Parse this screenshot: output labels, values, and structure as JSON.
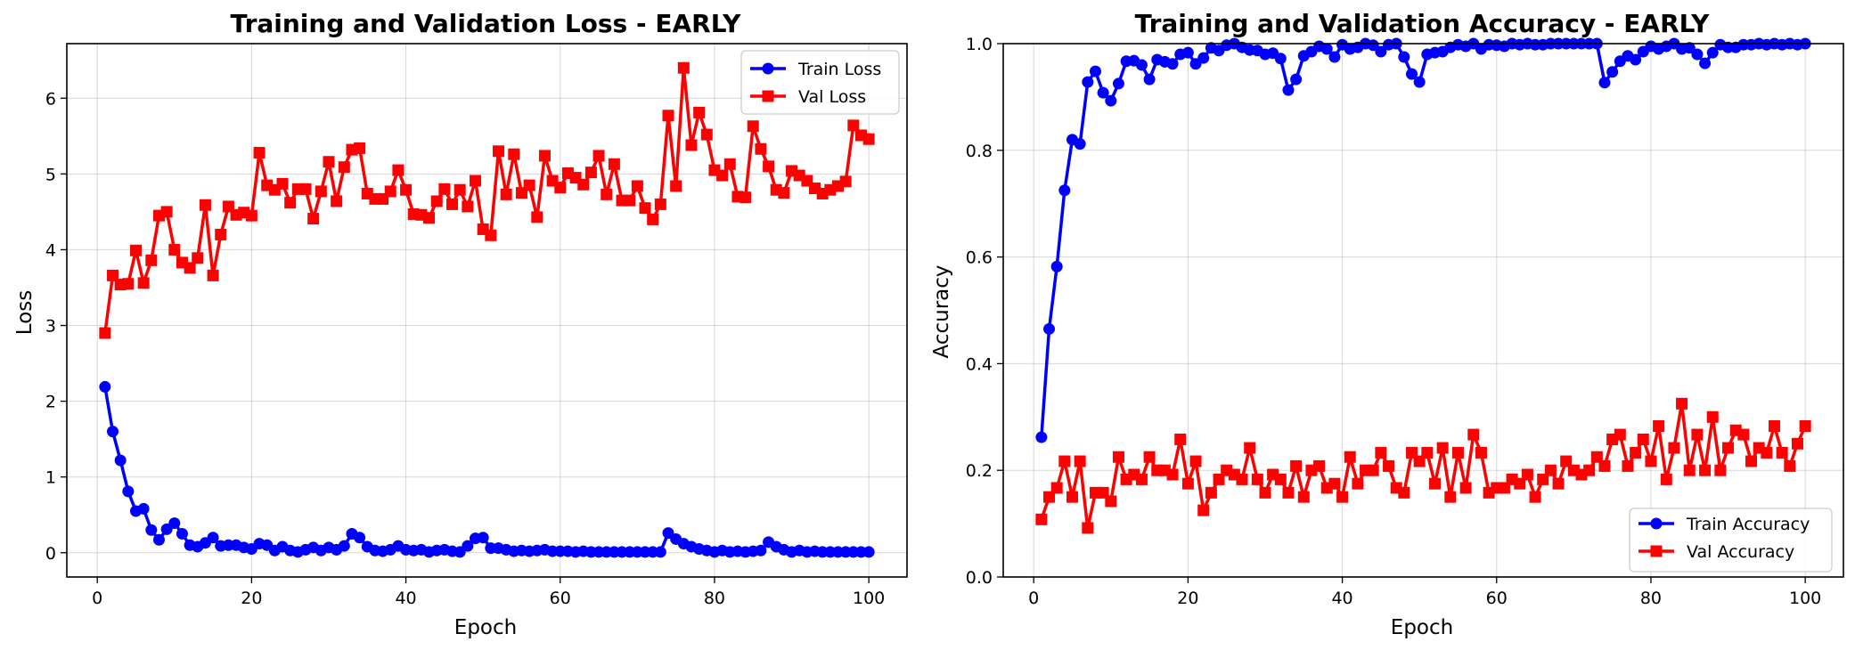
{
  "chart_data": [
    {
      "type": "line",
      "title": "Training and Validation Loss - EARLY",
      "xlabel": "Epoch",
      "ylabel": "Loss",
      "xlim": [
        -3.95,
        104.95
      ],
      "ylim": [
        -0.32,
        6.72
      ],
      "xticks": [
        0,
        20,
        40,
        60,
        80,
        100
      ],
      "yticks": [
        0,
        1,
        2,
        3,
        4,
        5,
        6
      ],
      "grid": true,
      "legend": "top-right",
      "x": [
        1,
        2,
        3,
        4,
        5,
        6,
        7,
        8,
        9,
        10,
        11,
        12,
        13,
        14,
        15,
        16,
        17,
        18,
        19,
        20,
        21,
        22,
        23,
        24,
        25,
        26,
        27,
        28,
        29,
        30,
        31,
        32,
        33,
        34,
        35,
        36,
        37,
        38,
        39,
        40,
        41,
        42,
        43,
        44,
        45,
        46,
        47,
        48,
        49,
        50,
        51,
        52,
        53,
        54,
        55,
        56,
        57,
        58,
        59,
        60,
        61,
        62,
        63,
        64,
        65,
        66,
        67,
        68,
        69,
        70,
        71,
        72,
        73,
        74,
        75,
        76,
        77,
        78,
        79,
        80,
        81,
        82,
        83,
        84,
        85,
        86,
        87,
        88,
        89,
        90,
        91,
        92,
        93,
        94,
        95,
        96,
        97,
        98,
        99,
        100
      ],
      "series": [
        {
          "name": "Train Loss",
          "color": "#0000ff",
          "marker": "circle",
          "values": [
            2.19,
            1.6,
            1.22,
            0.81,
            0.55,
            0.58,
            0.3,
            0.17,
            0.31,
            0.39,
            0.25,
            0.1,
            0.08,
            0.13,
            0.2,
            0.09,
            0.1,
            0.1,
            0.07,
            0.05,
            0.12,
            0.1,
            0.03,
            0.08,
            0.03,
            0.01,
            0.04,
            0.07,
            0.03,
            0.07,
            0.04,
            0.09,
            0.25,
            0.2,
            0.08,
            0.03,
            0.02,
            0.04,
            0.09,
            0.04,
            0.03,
            0.04,
            0.01,
            0.03,
            0.04,
            0.02,
            0.01,
            0.09,
            0.19,
            0.2,
            0.06,
            0.06,
            0.04,
            0.02,
            0.03,
            0.02,
            0.03,
            0.04,
            0.02,
            0.02,
            0.02,
            0.01,
            0.02,
            0.01,
            0.01,
            0.01,
            0.01,
            0.01,
            0.01,
            0.01,
            0.01,
            0.01,
            0.01,
            0.26,
            0.18,
            0.12,
            0.08,
            0.05,
            0.03,
            0.01,
            0.03,
            0.01,
            0.02,
            0.01,
            0.02,
            0.03,
            0.14,
            0.08,
            0.04,
            0.01,
            0.03,
            0.01,
            0.02,
            0.01,
            0.01,
            0.01,
            0.01,
            0.01,
            0.01,
            0.01
          ]
        },
        {
          "name": "Val Loss",
          "color": "#ff0000",
          "marker": "square",
          "values": [
            2.9,
            3.66,
            3.54,
            3.55,
            3.99,
            3.56,
            3.86,
            4.45,
            4.5,
            4.0,
            3.83,
            3.76,
            3.89,
            4.59,
            3.66,
            4.2,
            4.57,
            4.46,
            4.49,
            4.45,
            5.28,
            4.85,
            4.79,
            4.87,
            4.62,
            4.8,
            4.8,
            4.41,
            4.77,
            5.16,
            4.64,
            5.09,
            5.32,
            5.34,
            4.74,
            4.67,
            4.67,
            4.77,
            5.05,
            4.79,
            4.47,
            4.46,
            4.42,
            4.64,
            4.8,
            4.6,
            4.79,
            4.57,
            4.91,
            4.27,
            4.19,
            5.3,
            4.73,
            5.26,
            4.75,
            4.85,
            4.43,
            5.24,
            4.91,
            4.82,
            5.01,
            4.95,
            4.86,
            5.02,
            5.24,
            4.73,
            5.13,
            4.65,
            4.65,
            4.84,
            4.55,
            4.4,
            4.6,
            5.77,
            4.84,
            6.4,
            5.38,
            5.81,
            5.52,
            5.05,
            4.98,
            5.13,
            4.7,
            4.69,
            5.63,
            5.33,
            5.1,
            4.79,
            4.75,
            5.04,
            4.98,
            4.91,
            4.81,
            4.74,
            4.79,
            4.84,
            4.9,
            5.64,
            5.51,
            5.46
          ]
        }
      ]
    },
    {
      "type": "line",
      "title": "Training and Validation Accuracy - EARLY",
      "xlabel": "Epoch",
      "ylabel": "Accuracy",
      "xlim": [
        -3.95,
        104.95
      ],
      "ylim": [
        0.0,
        1.0
      ],
      "xticks": [
        0,
        20,
        40,
        60,
        80,
        100
      ],
      "yticks": [
        0.0,
        0.2,
        0.4,
        0.6,
        0.8,
        1.0
      ],
      "grid": true,
      "legend": "bottom-right",
      "x": [
        1,
        2,
        3,
        4,
        5,
        6,
        7,
        8,
        9,
        10,
        11,
        12,
        13,
        14,
        15,
        16,
        17,
        18,
        19,
        20,
        21,
        22,
        23,
        24,
        25,
        26,
        27,
        28,
        29,
        30,
        31,
        32,
        33,
        34,
        35,
        36,
        37,
        38,
        39,
        40,
        41,
        42,
        43,
        44,
        45,
        46,
        47,
        48,
        49,
        50,
        51,
        52,
        53,
        54,
        55,
        56,
        57,
        58,
        59,
        60,
        61,
        62,
        63,
        64,
        65,
        66,
        67,
        68,
        69,
        70,
        71,
        72,
        73,
        74,
        75,
        76,
        77,
        78,
        79,
        80,
        81,
        82,
        83,
        84,
        85,
        86,
        87,
        88,
        89,
        90,
        91,
        92,
        93,
        94,
        95,
        96,
        97,
        98,
        99,
        100
      ],
      "series": [
        {
          "name": "Train Accuracy",
          "color": "#0000ff",
          "marker": "circle",
          "values": [
            0.262,
            0.465,
            0.582,
            0.725,
            0.82,
            0.812,
            0.928,
            0.948,
            0.908,
            0.893,
            0.925,
            0.967,
            0.968,
            0.96,
            0.933,
            0.97,
            0.966,
            0.962,
            0.98,
            0.983,
            0.962,
            0.973,
            0.992,
            0.987,
            0.997,
            1.0,
            0.993,
            0.988,
            0.987,
            0.98,
            0.982,
            0.972,
            0.913,
            0.933,
            0.977,
            0.985,
            0.995,
            0.99,
            0.975,
            0.998,
            0.99,
            0.993,
            1.0,
            0.997,
            0.985,
            0.998,
            1.0,
            0.975,
            0.943,
            0.928,
            0.98,
            0.983,
            0.985,
            0.993,
            0.998,
            0.995,
            1.0,
            0.99,
            0.998,
            0.997,
            0.995,
            1.0,
            0.998,
            1.0,
            0.998,
            0.998,
            1.0,
            1.0,
            1.0,
            1.0,
            1.0,
            1.0,
            1.0,
            0.927,
            0.947,
            0.967,
            0.977,
            0.97,
            0.985,
            0.995,
            0.99,
            0.995,
            1.0,
            0.99,
            0.992,
            0.98,
            0.963,
            0.983,
            0.998,
            0.993,
            0.993,
            0.998,
            0.998,
            1.0,
            0.998,
            1.0,
            0.998,
            1.0,
            0.998,
            1.0
          ]
        },
        {
          "name": "Val Accuracy",
          "color": "#ff0000",
          "marker": "square",
          "values": [
            0.108,
            0.15,
            0.167,
            0.217,
            0.15,
            0.217,
            0.092,
            0.158,
            0.158,
            0.142,
            0.225,
            0.183,
            0.192,
            0.183,
            0.225,
            0.2,
            0.2,
            0.192,
            0.258,
            0.175,
            0.217,
            0.125,
            0.158,
            0.183,
            0.2,
            0.192,
            0.183,
            0.242,
            0.183,
            0.158,
            0.192,
            0.183,
            0.158,
            0.208,
            0.15,
            0.2,
            0.208,
            0.167,
            0.175,
            0.15,
            0.225,
            0.175,
            0.2,
            0.2,
            0.233,
            0.208,
            0.167,
            0.158,
            0.233,
            0.217,
            0.233,
            0.175,
            0.242,
            0.15,
            0.233,
            0.167,
            0.267,
            0.233,
            0.158,
            0.167,
            0.167,
            0.183,
            0.175,
            0.192,
            0.15,
            0.183,
            0.2,
            0.175,
            0.217,
            0.2,
            0.192,
            0.2,
            0.225,
            0.208,
            0.258,
            0.267,
            0.208,
            0.233,
            0.258,
            0.217,
            0.283,
            0.183,
            0.242,
            0.325,
            0.2,
            0.267,
            0.2,
            0.3,
            0.2,
            0.242,
            0.275,
            0.267,
            0.217,
            0.242,
            0.233,
            0.283,
            0.233,
            0.208,
            0.25,
            0.283
          ]
        }
      ]
    }
  ]
}
